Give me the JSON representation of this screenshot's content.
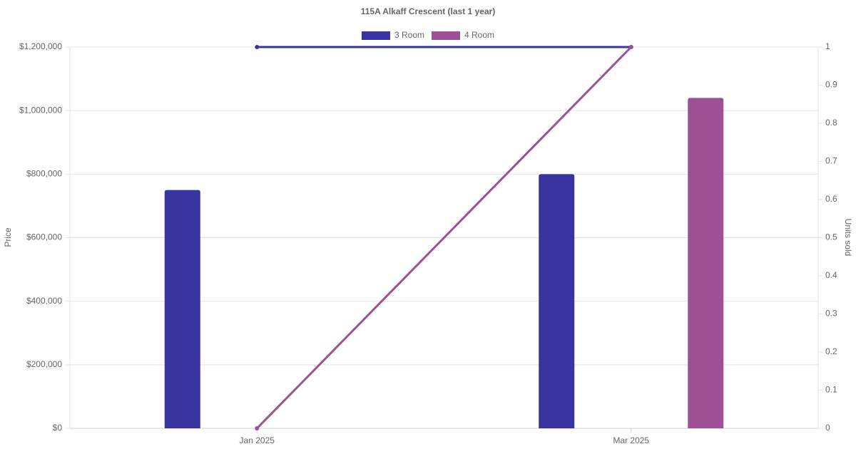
{
  "chart_data": {
    "type": "bar",
    "title": "115A Alkaff Crescent (last 1 year)",
    "y_label": "Price",
    "y2_label": "Units sold",
    "categories": [
      "Jan 2025",
      "Mar 2025"
    ],
    "series": [
      {
        "name": "3 Room",
        "color": "#3a34a0",
        "values": [
          750000,
          800000
        ],
        "y2_values": [
          1,
          1
        ]
      },
      {
        "name": "4 Room",
        "color": "#9e5095",
        "values": [
          null,
          1040000
        ],
        "y2_values": [
          0,
          1
        ]
      }
    ],
    "ylim": [
      0,
      1200000
    ],
    "yticks": [
      {
        "value": 0,
        "label": "$0"
      },
      {
        "value": 200000,
        "label": "$200,000"
      },
      {
        "value": 400000,
        "label": "$400,000"
      },
      {
        "value": 600000,
        "label": "$600,000"
      },
      {
        "value": 800000,
        "label": "$800,000"
      },
      {
        "value": 1000000,
        "label": "$1,000,000"
      },
      {
        "value": 1200000,
        "label": "$1,200,000"
      }
    ],
    "y2lim": [
      0,
      1
    ],
    "y2ticks": [
      0,
      0.1,
      0.2,
      0.3,
      0.4,
      0.5,
      0.6,
      0.7,
      0.8,
      0.9,
      1
    ],
    "grid": true,
    "legend": "top"
  }
}
